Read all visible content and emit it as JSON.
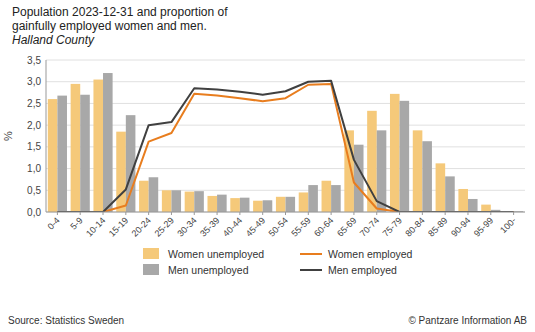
{
  "chart_data": {
    "type": "bar",
    "title": [
      "Population 2023-12-31 and proportion of",
      "gainfully employed women and men."
    ],
    "subtitle": "Halland County",
    "ylabel": "%",
    "categories": [
      "0-4",
      "5-9",
      "10-14",
      "15-19",
      "20-24",
      "25-29",
      "30-34",
      "35-39",
      "40-44",
      "45-49",
      "50-54",
      "55-59",
      "60-64",
      "65-69",
      "70-74",
      "75-79",
      "80-84",
      "85-89",
      "90-94",
      "95-99",
      "100-"
    ],
    "series": [
      {
        "name": "Women unemployed",
        "type": "bar",
        "color": "#f5c97a",
        "values": [
          2.6,
          2.95,
          3.05,
          1.85,
          0.72,
          0.5,
          0.47,
          0.37,
          0.32,
          0.26,
          0.35,
          0.45,
          0.72,
          1.88,
          2.33,
          2.72,
          1.88,
          1.12,
          0.53,
          0.17,
          0.02
        ]
      },
      {
        "name": "Men unemployed",
        "type": "bar",
        "color": "#a8a8a8",
        "values": [
          2.68,
          2.7,
          3.2,
          2.23,
          0.8,
          0.5,
          0.48,
          0.4,
          0.33,
          0.27,
          0.35,
          0.62,
          0.62,
          1.55,
          1.88,
          2.56,
          1.63,
          0.82,
          0.3,
          0.05,
          0.02
        ]
      },
      {
        "name": "Women employed",
        "type": "line",
        "color": "#e87d1e",
        "values": [
          0.0,
          0.0,
          0.0,
          0.15,
          1.62,
          1.82,
          2.72,
          2.68,
          2.62,
          2.55,
          2.62,
          2.93,
          2.95,
          0.68,
          0.08,
          0.0,
          0.0,
          0.0,
          0.0,
          0.0,
          0.0
        ]
      },
      {
        "name": "Men employed",
        "type": "line",
        "color": "#404040",
        "values": [
          0.0,
          0.0,
          0.0,
          0.52,
          2.0,
          2.07,
          2.85,
          2.82,
          2.77,
          2.7,
          2.78,
          3.0,
          3.02,
          1.2,
          0.25,
          0.0,
          0.0,
          0.0,
          0.0,
          0.0,
          0.0
        ]
      }
    ],
    "ylim": [
      0,
      3.5
    ],
    "yticks": [
      {
        "value": 0.0,
        "label": "0,0"
      },
      {
        "value": 0.5,
        "label": "0,5"
      },
      {
        "value": 1.0,
        "label": "1,0"
      },
      {
        "value": 1.5,
        "label": "1,5"
      },
      {
        "value": 2.0,
        "label": "2,0"
      },
      {
        "value": 2.5,
        "label": "2,5"
      },
      {
        "value": 3.0,
        "label": "3,0"
      },
      {
        "value": 3.5,
        "label": "3,5"
      }
    ],
    "grid": true,
    "legend": "bottom",
    "annotations": [
      "Source: Statistics Sweden",
      "© Pantzare Information AB"
    ]
  }
}
